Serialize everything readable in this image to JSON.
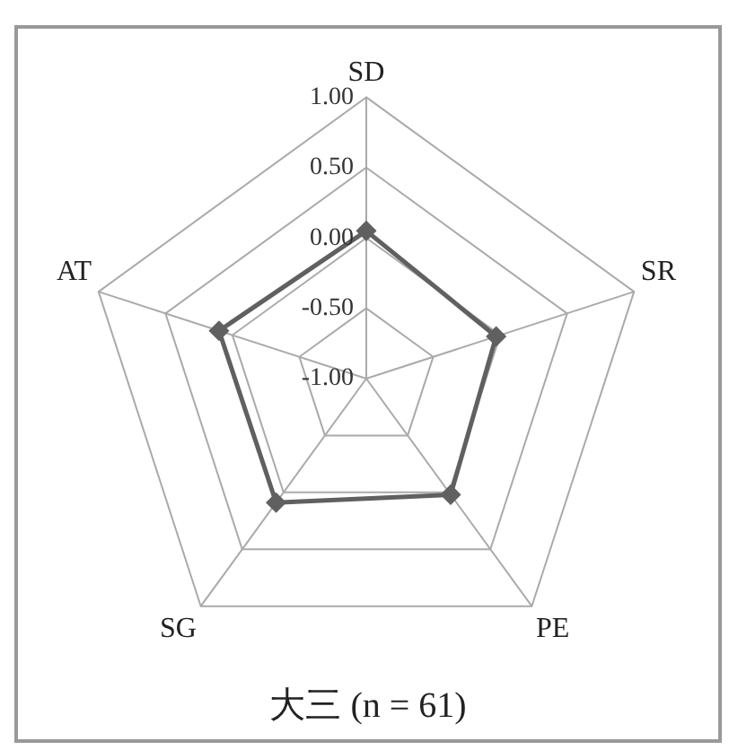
{
  "chart_data": {
    "type": "radar",
    "title": "大三 (n = 61)",
    "categories": [
      "SD",
      "SR",
      "PE",
      "SG",
      "AT"
    ],
    "series": [
      {
        "color": "#606060",
        "values": [
          0.05,
          -0.03,
          0.02,
          0.09,
          0.1
        ]
      }
    ],
    "ylim": [
      -1,
      1
    ],
    "yticks": [
      {
        "value": -1,
        "label": "-1.00"
      },
      {
        "value": -0.5,
        "label": "-0.50"
      },
      {
        "value": 0,
        "label": "0.00"
      },
      {
        "value": 0.5,
        "label": "0.50"
      },
      {
        "value": 1,
        "label": "1.00"
      }
    ],
    "grid": true,
    "legend": false,
    "marker": "diamond",
    "line_style": "solid"
  }
}
